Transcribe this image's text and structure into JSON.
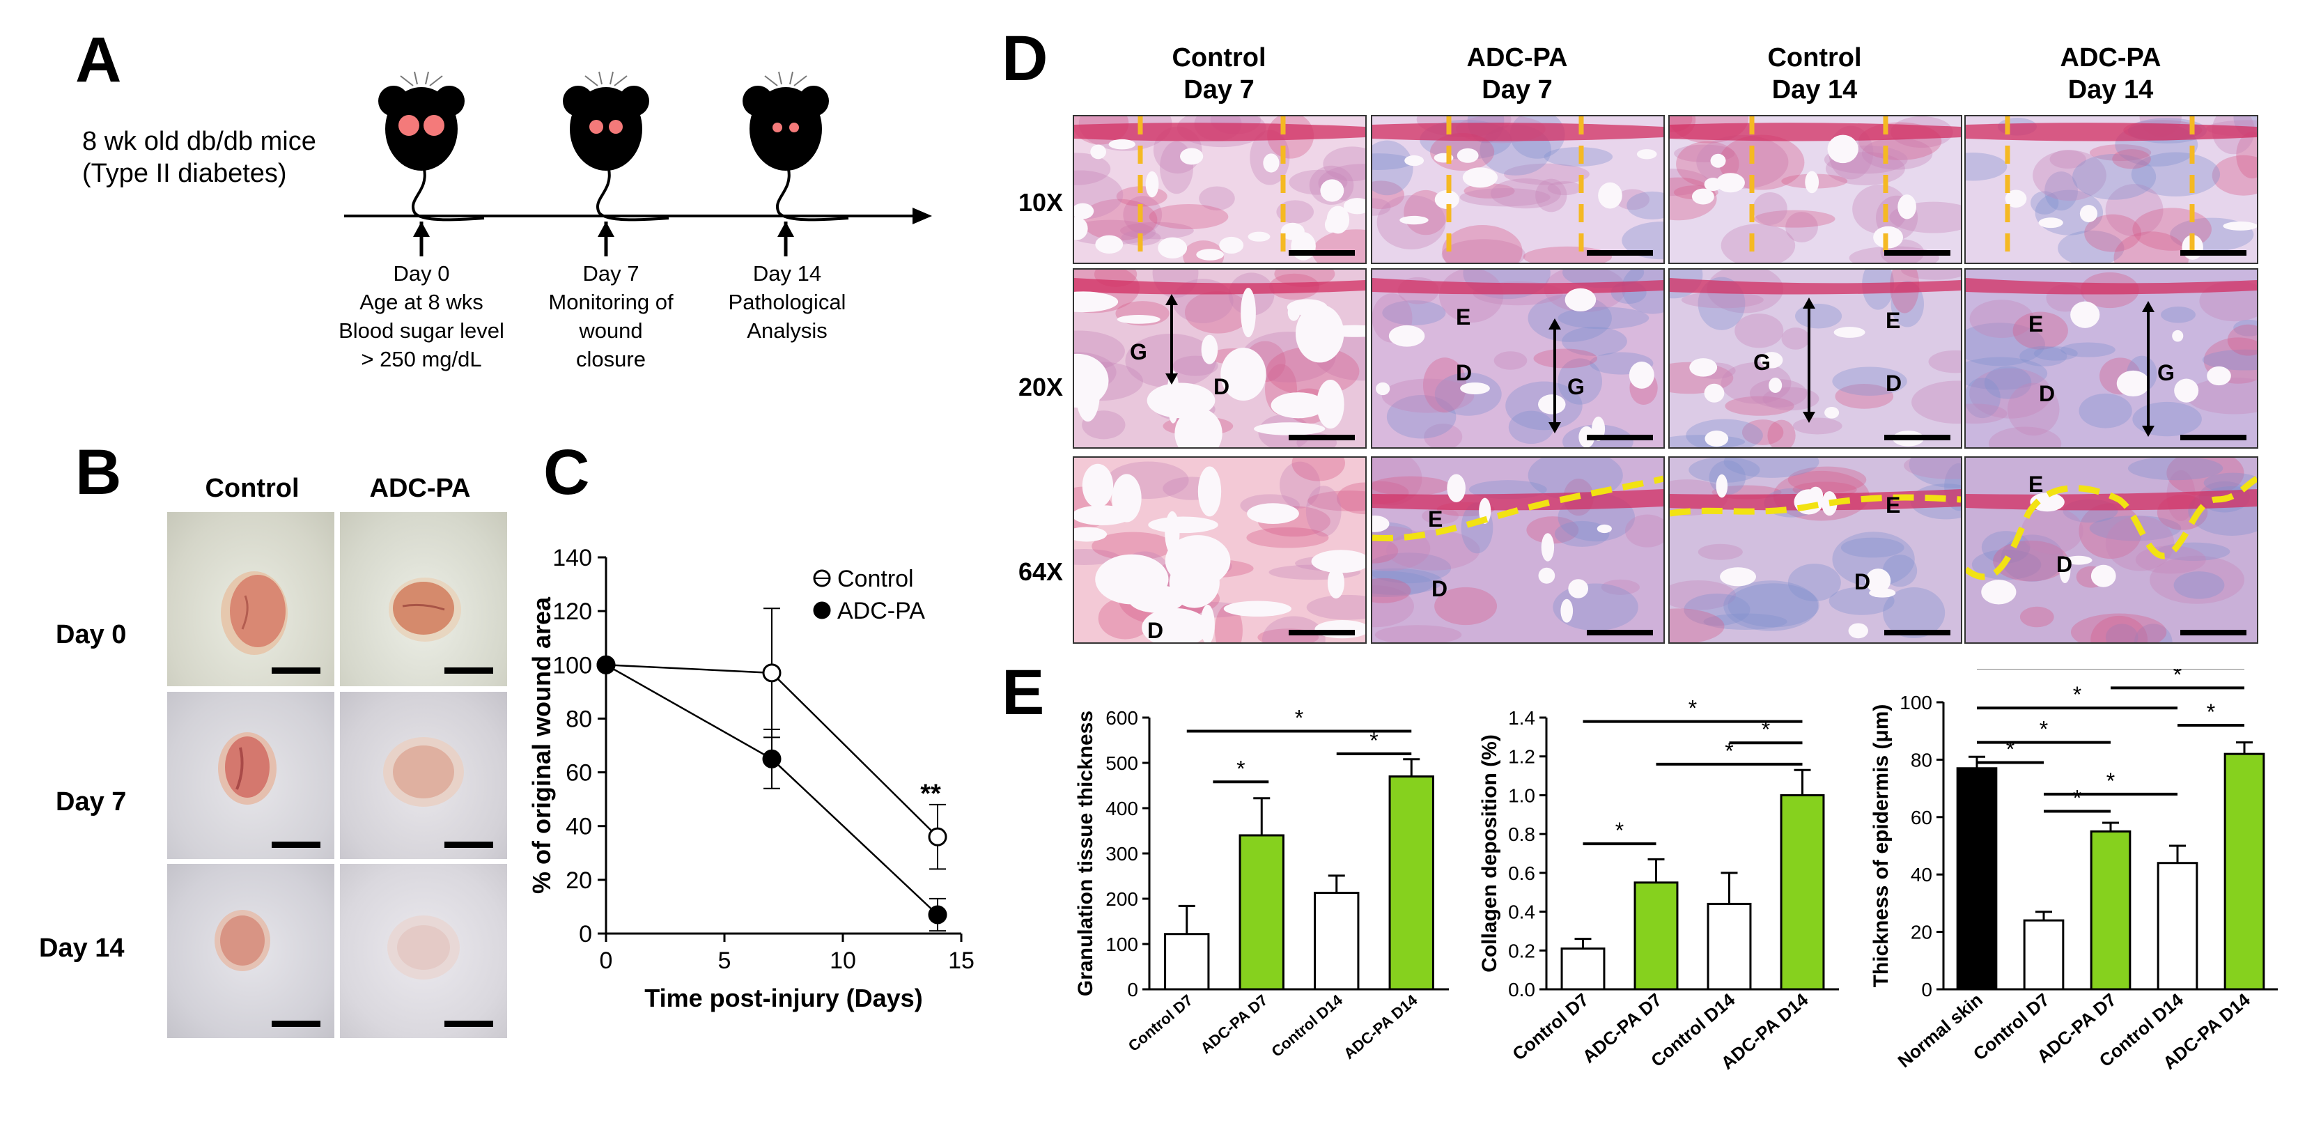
{
  "panelA": {
    "letter": "A",
    "subject_line1": "8 wk old db/db mice",
    "subject_line2": "(Type II diabetes)",
    "events": [
      {
        "lines": [
          "Day 0",
          "Age at 8 wks",
          "Blood sugar level",
          "> 250 mg/dL"
        ]
      },
      {
        "lines": [
          "Day 7",
          "Monitoring of",
          "wound",
          "closure"
        ]
      },
      {
        "lines": [
          "Day 14",
          "Pathological",
          "Analysis"
        ]
      }
    ]
  },
  "panelB": {
    "letter": "B",
    "columns": [
      "Control",
      "ADC-PA"
    ],
    "rows": [
      "Day 0",
      "Day 7",
      "Day 14"
    ]
  },
  "panelC": {
    "letter": "C",
    "significance": "**"
  },
  "panelD": {
    "letter": "D",
    "columns": [
      {
        "line1": "Control",
        "line2": "Day 7"
      },
      {
        "line1": "ADC-PA",
        "line2": "Day 7"
      },
      {
        "line1": "Control",
        "line2": "Day 14"
      },
      {
        "line1": "ADC-PA",
        "line2": "Day 14"
      }
    ],
    "rows": [
      "10X",
      "20X",
      "64X"
    ],
    "labels": {
      "E": "E",
      "D": "D",
      "G": "G"
    }
  },
  "panelE": {
    "letter": "E"
  },
  "chart_data": [
    {
      "type": "line",
      "panel": "C",
      "xlabel": "Time post-injury (Days)",
      "ylabel": "% of  original wound area",
      "xlim": [
        0,
        15
      ],
      "ylim": [
        0,
        140
      ],
      "xticks": [
        0,
        5,
        10,
        15
      ],
      "yticks": [
        0,
        20,
        40,
        60,
        80,
        100,
        120,
        140
      ],
      "legend_position": "top-right",
      "series": [
        {
          "name": "Control",
          "marker": "open-circle",
          "x": [
            0,
            7,
            14
          ],
          "y": [
            100,
            97,
            36
          ],
          "err": [
            0,
            24,
            12
          ]
        },
        {
          "name": "ADC-PA",
          "marker": "filled-circle",
          "x": [
            0,
            7,
            14
          ],
          "y": [
            100,
            65,
            7
          ],
          "err": [
            0,
            11,
            6
          ]
        }
      ],
      "annotations": [
        {
          "x": 14,
          "y": 52,
          "text": "**"
        }
      ]
    },
    {
      "type": "bar",
      "panel": "E1",
      "ylabel": "Granulation tissue thickness",
      "ylim": [
        0,
        600
      ],
      "yticks": [
        0,
        100,
        200,
        300,
        400,
        500,
        600
      ],
      "categories": [
        "Control D7",
        "ADC-PA D7",
        "Control D14",
        "ADC-PA D14"
      ],
      "values": [
        122,
        340,
        213,
        470
      ],
      "errors": [
        62,
        82,
        38,
        38
      ],
      "colors": [
        "#ffffff",
        "#86d11e",
        "#ffffff",
        "#86d11e"
      ],
      "significance": [
        {
          "from": 0,
          "to": 3,
          "y": 570,
          "text": "*"
        },
        {
          "from": 1,
          "to": 1,
          "y": 458,
          "text": "*"
        },
        {
          "from": 2,
          "to": 3,
          "y": 520,
          "text": "*"
        }
      ]
    },
    {
      "type": "bar",
      "panel": "E2",
      "ylabel": "Collagen deposition (%)",
      "ylim": [
        0,
        1.4
      ],
      "yticks": [
        0.0,
        0.2,
        0.4,
        0.6,
        0.8,
        1.0,
        1.2,
        1.4
      ],
      "categories": [
        "Control D7",
        "ADC-PA D7",
        "Control D14",
        "ADC-PA D14"
      ],
      "values": [
        0.21,
        0.55,
        0.44,
        1.0
      ],
      "errors": [
        0.05,
        0.12,
        0.16,
        0.13
      ],
      "colors": [
        "#ffffff",
        "#86d11e",
        "#ffffff",
        "#86d11e"
      ],
      "significance": [
        {
          "from": 0,
          "to": 3,
          "y": 1.38,
          "text": "*"
        },
        {
          "from": 2,
          "to": 3,
          "y": 1.27,
          "text": "*"
        },
        {
          "from": 1,
          "to": 3,
          "y": 1.16,
          "text": "*"
        },
        {
          "from": 0,
          "to": 1,
          "y": 0.75,
          "text": "*"
        }
      ]
    },
    {
      "type": "bar",
      "panel": "E3",
      "ylabel": "Thickness of epidermis (μm)",
      "ylim": [
        0,
        100
      ],
      "yticks": [
        0,
        20,
        40,
        60,
        80,
        100
      ],
      "categories": [
        "Normal skin",
        "Control D7",
        "ADC-PA D7",
        "Control D14",
        "ADC-PA D14"
      ],
      "values": [
        77,
        24,
        55,
        44,
        82
      ],
      "errors": [
        4,
        3,
        3,
        6,
        4
      ],
      "colors": [
        "#000000",
        "#ffffff",
        "#86d11e",
        "#ffffff",
        "#86d11e"
      ],
      "significance": [
        {
          "from": 0,
          "to": 4,
          "y": 112,
          "text": "*"
        },
        {
          "from": 2,
          "to": 4,
          "y": 105,
          "text": "*"
        },
        {
          "from": 0,
          "to": 3,
          "y": 98,
          "text": "*"
        },
        {
          "from": 3,
          "to": 4,
          "y": 92,
          "text": "*"
        },
        {
          "from": 0,
          "to": 2,
          "y": 86,
          "text": "*"
        },
        {
          "from": 0,
          "to": 1,
          "y": 79,
          "text": "*"
        },
        {
          "from": 1,
          "to": 3,
          "y": 68,
          "text": "*"
        },
        {
          "from": 1,
          "to": 2,
          "y": 62,
          "text": "*"
        }
      ]
    }
  ]
}
